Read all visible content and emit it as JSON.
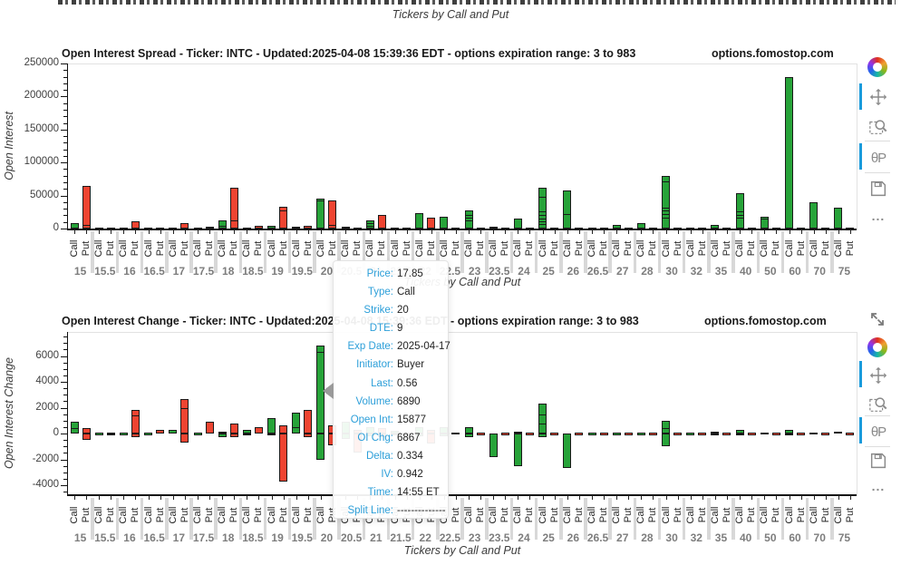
{
  "top_strip": {
    "axis_label": "Tickers by Call and Put"
  },
  "colors": {
    "call": "#27a339",
    "put": "#ee4431",
    "bar_outline": "#1a1a1a",
    "active_indicator": "#1a9bdc",
    "icon": "#8a8a8a",
    "tooltip_label": "#2d9fd9",
    "tooltip_value": "#222222",
    "strike_label": "#7d7d7d",
    "separator": "#d8d8d8"
  },
  "toolbar": {
    "tools": [
      {
        "name": "pan",
        "active": true
      },
      {
        "name": "box-zoom",
        "active": false
      },
      {
        "name": "hover",
        "active": true
      },
      {
        "name": "save",
        "active": false
      },
      {
        "name": "more",
        "active": false
      }
    ]
  },
  "tooltip": {
    "rows": [
      {
        "label": "Price",
        "value": "17.85"
      },
      {
        "label": "Type",
        "value": "Call"
      },
      {
        "label": "Strike",
        "value": "20"
      },
      {
        "label": "DTE",
        "value": "9"
      },
      {
        "label": "Exp Date",
        "value": "2025-04-17"
      },
      {
        "label": "Initiator",
        "value": "Buyer"
      },
      {
        "label": "Last",
        "value": "0.56"
      },
      {
        "label": "Volume",
        "value": "6890"
      },
      {
        "label": "Open Int",
        "value": "15877"
      },
      {
        "label": "OI Chg",
        "value": "6867"
      },
      {
        "label": "Delta",
        "value": "0.334"
      },
      {
        "label": "IV",
        "value": "0.942"
      },
      {
        "label": "Time",
        "value": "14:55 ET"
      },
      {
        "label": "Split Line",
        "value": "--------------"
      }
    ]
  },
  "chart_data": [
    {
      "type": "bar",
      "title": "Open Interest Spread - Ticker: INTC - Updated:2025-04-08 15:39:36 EDT - options expiration range: 3 to 983",
      "watermark": "options.fomostop.com",
      "xlabel": "Tickers by Call and Put",
      "ylabel": "Open Interest",
      "ylim": [
        0,
        250000
      ],
      "yticks": [
        0,
        50000,
        100000,
        150000,
        200000,
        250000
      ],
      "ytick_labels": [
        "0",
        "50000",
        "100000",
        "150000",
        "200000",
        "250000"
      ],
      "grid": false,
      "legend": "none",
      "categories": [
        "15",
        "15.5",
        "16",
        "16.5",
        "17",
        "17.5",
        "18",
        "18.5",
        "19",
        "19.5",
        "20",
        "20.5",
        "21",
        "21.5",
        "22",
        "22.5",
        "23",
        "23.5",
        "24",
        "25",
        "26",
        "26.5",
        "27",
        "28",
        "30",
        "32",
        "35",
        "40",
        "50",
        "60",
        "70",
        "75"
      ],
      "series": [
        {
          "name": "Call",
          "color": "#27a339",
          "values": [
            8000,
            400,
            600,
            400,
            2000,
            600,
            13000,
            900,
            4000,
            2500,
            46000,
            3000,
            13000,
            2000,
            24000,
            18000,
            27000,
            3000,
            15000,
            62000,
            58000,
            900,
            6000,
            8000,
            80000,
            2000,
            6000,
            54000,
            18000,
            230000,
            40000,
            32000
          ]
        },
        {
          "name": "Put",
          "color": "#ee4431",
          "values": [
            65000,
            400,
            11000,
            900,
            8000,
            3000,
            62000,
            3500,
            33000,
            4000,
            43000,
            2000,
            21000,
            2000,
            17000,
            700,
            900,
            400,
            700,
            1300,
            700,
            400,
            400,
            400,
            1300,
            400,
            400,
            700,
            400,
            700,
            400,
            400
          ]
        }
      ],
      "segment_boundaries": {
        "Call": {
          "18": [
            4000
          ],
          "20": [
            43000
          ],
          "21": [
            4000,
            8000
          ],
          "23": [
            12000,
            16000,
            21000
          ],
          "25": [
            7000,
            11000,
            15000,
            20000,
            26000,
            48000
          ],
          "26": [
            22000
          ],
          "30": [
            17000,
            22000,
            27000,
            31000,
            72000
          ],
          "40": [
            17000,
            21000,
            26000
          ],
          "50": [
            15000
          ]
        },
        "Put": {
          "15": [
            5000
          ],
          "18": [
            12000
          ],
          "19": [
            28000
          ],
          "20": [
            5000
          ]
        }
      }
    },
    {
      "type": "bar",
      "title": "Open Interest Change - Ticker: INTC - Updated:2025-04-08 15:39:36 EDT - options expiration range: 3 to 983",
      "watermark": "options.fomostop.com",
      "xlabel": "Tickers by Call and Put",
      "ylabel": "Open Interest Change",
      "ylim": [
        -4700,
        7850
      ],
      "yticks": [
        6000,
        4000,
        2000,
        0,
        -2000,
        -4000
      ],
      "ytick_labels": [
        "6000",
        "4000",
        "2000",
        "0",
        "-2000",
        "-4000"
      ],
      "grid": false,
      "legend": "none",
      "categories": [
        "15",
        "15.5",
        "16",
        "16.5",
        "17",
        "17.5",
        "18",
        "18.5",
        "19",
        "19.5",
        "20",
        "20.5",
        "21",
        "21.5",
        "22",
        "22.5",
        "23",
        "23.5",
        "24",
        "25",
        "26",
        "26.5",
        "27",
        "28",
        "30",
        "32",
        "35",
        "40",
        "50",
        "60",
        "70",
        "75"
      ],
      "series": [
        {
          "name": "Call",
          "color": "#27a339",
          "pos": [
            900,
            0,
            0,
            0,
            300,
            0,
            150,
            300,
            1200,
            1600,
            6800,
            900,
            500,
            200,
            500,
            500,
            500,
            0,
            150,
            2300,
            0,
            0,
            0,
            0,
            1000,
            0,
            150,
            250,
            100,
            250,
            60,
            150
          ],
          "neg": [
            0,
            0,
            0,
            0,
            0,
            0,
            -300,
            -100,
            -100,
            0,
            -2000,
            -400,
            -200,
            -100,
            -200,
            -200,
            -300,
            -1800,
            -2500,
            -300,
            -2700,
            0,
            0,
            0,
            -1000,
            0,
            -60,
            -150,
            0,
            -100,
            0,
            0
          ]
        },
        {
          "name": "Put",
          "color": "#ee4431",
          "pos": [
            400,
            100,
            1800,
            300,
            2700,
            900,
            800,
            500,
            600,
            1800,
            600,
            300,
            400,
            100,
            300,
            100,
            0,
            0,
            0,
            0,
            0,
            0,
            0,
            0,
            0,
            0,
            0,
            0,
            0,
            0,
            0,
            0
          ],
          "neg": [
            -500,
            -100,
            -300,
            0,
            -700,
            0,
            -300,
            0,
            -3700,
            -300,
            -900,
            -1500,
            -300,
            -100,
            -800,
            0,
            0,
            0,
            0,
            0,
            0,
            0,
            0,
            0,
            0,
            0,
            0,
            0,
            0,
            0,
            0,
            0
          ]
        }
      ],
      "segment_boundaries": {
        "Call": {
          "15": [
            400
          ],
          "19.5": [
            500
          ],
          "20": [
            6300
          ],
          "25": [
            800,
            1500
          ],
          "30": [
            400
          ]
        },
        "Put": {
          "16": [
            1400
          ],
          "17": [
            2000
          ]
        }
      }
    }
  ]
}
